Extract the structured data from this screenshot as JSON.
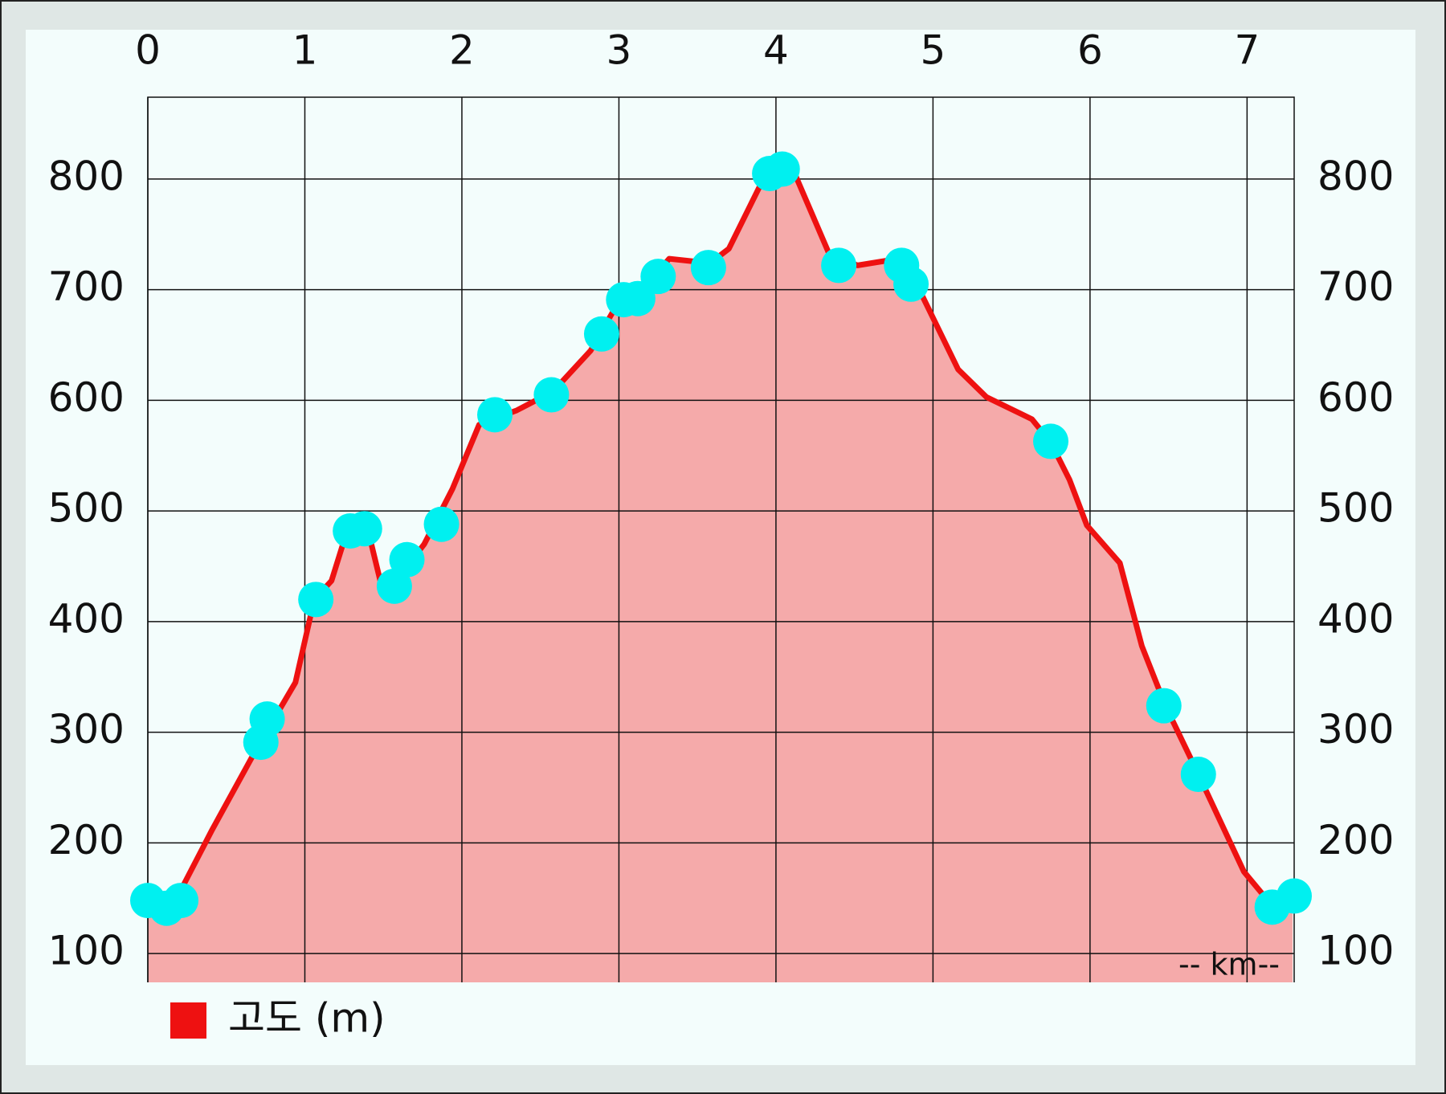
{
  "chart_data": {
    "type": "area",
    "x_unit_label": "-- km--",
    "xlim": [
      0,
      7.3
    ],
    "xticks": [
      0,
      1,
      2,
      3,
      4,
      5,
      6,
      7
    ],
    "ylim": [
      74,
      874
    ],
    "yticks": [
      100,
      200,
      300,
      400,
      500,
      600,
      700,
      800
    ],
    "grid": true,
    "legend": "bottom-left",
    "series": [
      {
        "name": "고도 (m)",
        "color": "#ee1111",
        "fill": "#f5aaaa",
        "x": [
          0,
          0.18,
          0.41,
          0.7,
          0.94,
          1.06,
          1.17,
          1.26,
          1.41,
          1.48,
          1.58,
          1.76,
          1.94,
          2.11,
          2.35,
          2.58,
          2.82,
          2.99,
          3.17,
          3.32,
          3.58,
          3.7,
          3.93,
          4.11,
          4.34,
          4.52,
          4.78,
          4.93,
          5.16,
          5.34,
          5.63,
          5.75,
          5.87,
          5.98,
          6.19,
          6.33,
          6.48,
          6.69,
          6.98,
          7.15,
          7.29
        ],
        "values": [
          149,
          149,
          212,
          287,
          345,
          420,
          437,
          478,
          478,
          437,
          437,
          470,
          520,
          578,
          591,
          608,
          645,
          687,
          703,
          728,
          724,
          737,
          803,
          808,
          732,
          722,
          728,
          695,
          628,
          603,
          583,
          562,
          528,
          487,
          453,
          378,
          324,
          262,
          174,
          145,
          153
        ]
      }
    ],
    "markers": {
      "color": "#00f0f0",
      "x": [
        0,
        0.12,
        0.21,
        0.72,
        0.76,
        1.07,
        1.29,
        1.38,
        1.57,
        1.65,
        1.87,
        2.21,
        2.57,
        2.89,
        3.03,
        3.12,
        3.25,
        3.57,
        3.96,
        4.04,
        4.4,
        4.8,
        4.86,
        5.75,
        6.47,
        6.69,
        7.16,
        7.3
      ],
      "values": [
        148,
        141,
        148,
        291,
        312,
        420,
        482,
        484,
        432,
        456,
        488,
        587,
        605,
        660,
        691,
        692,
        712,
        720,
        805,
        809,
        722,
        722,
        705,
        563,
        324,
        262,
        142,
        152
      ]
    }
  }
}
